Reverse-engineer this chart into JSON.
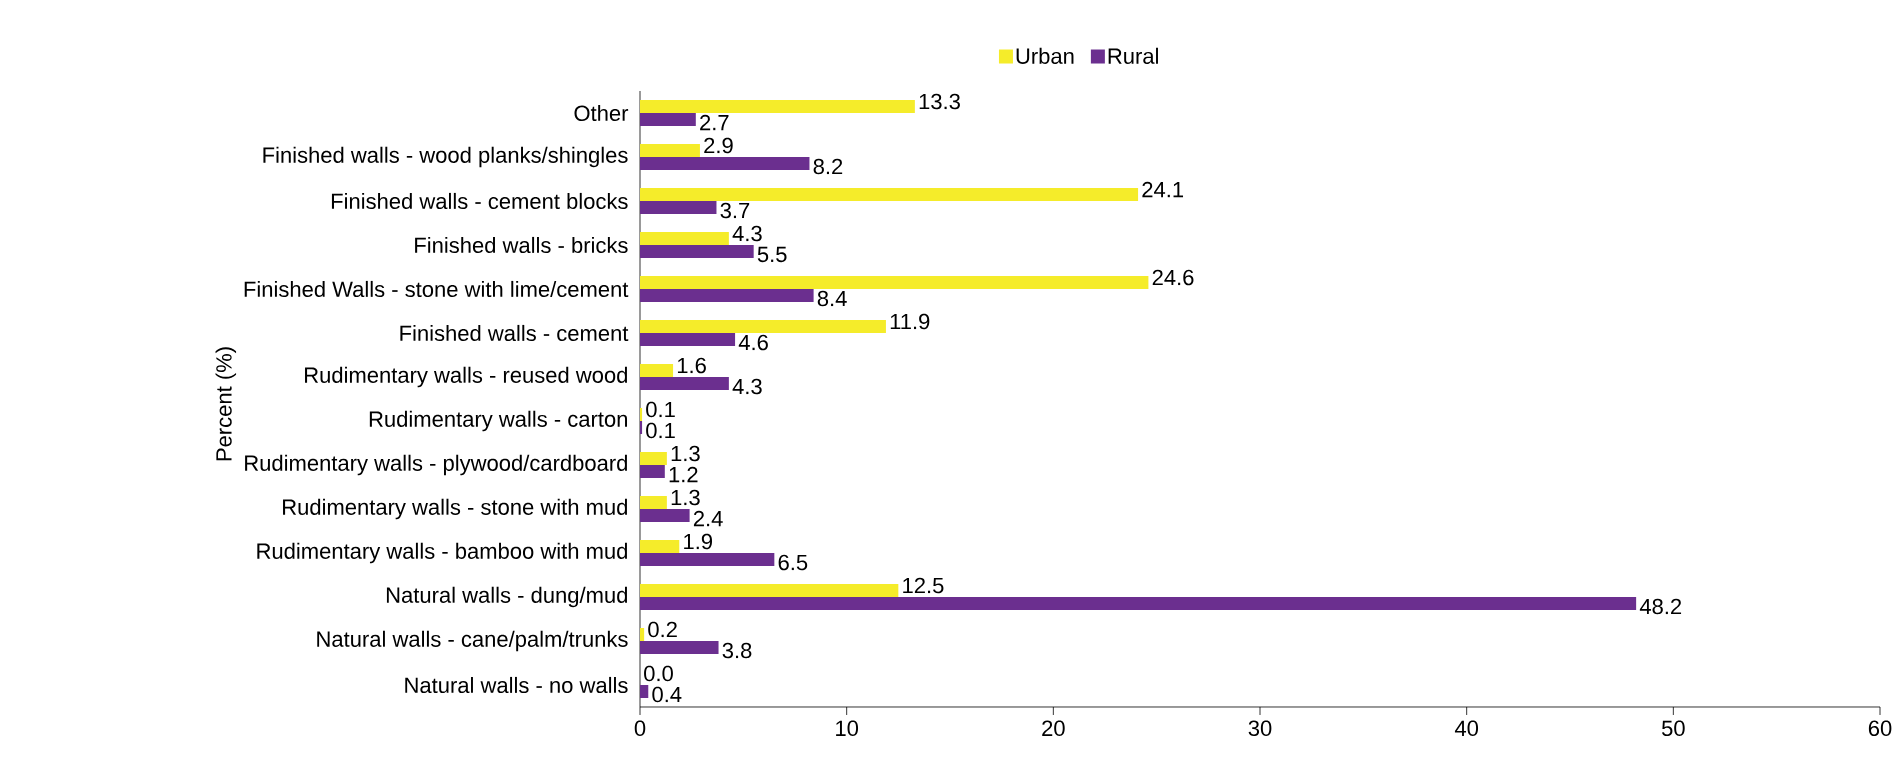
{
  "chart_data": {
    "type": "bar",
    "orientation": "horizontal",
    "ylabel": "Percent (%)",
    "categories": [
      "Other",
      "Finished walls - wood planks/shingles",
      "Finished walls - cement blocks",
      "Finished walls - bricks",
      "Finished Walls - stone with lime/cement",
      "Finished walls - cement",
      "Rudimentary walls - reused wood",
      "Rudimentary walls - carton",
      "Rudimentary walls - plywood/cardboard",
      "Rudimentary walls - stone with mud",
      "Rudimentary walls - bamboo with mud",
      "Natural walls - dung/mud",
      "Natural walls - cane/palm/trunks",
      "Natural walls - no walls"
    ],
    "series": [
      {
        "name": "Urban",
        "color": "#f5ec2a",
        "values": [
          13.3,
          2.9,
          24.1,
          4.3,
          24.6,
          11.9,
          1.6,
          0.1,
          1.3,
          1.3,
          1.9,
          12.5,
          0.2,
          0.0
        ],
        "value_labels": [
          "13.3",
          "2.9",
          "24.1",
          "4.3",
          "24.6",
          "11.9",
          "1.6",
          "0.1",
          "1.3",
          "1.3",
          "1.9",
          "12.5",
          "0.2",
          "0.0"
        ]
      },
      {
        "name": "Rural",
        "color": "#6b2f8f",
        "values": [
          2.7,
          8.2,
          3.7,
          5.5,
          8.4,
          4.6,
          4.3,
          0.1,
          1.2,
          2.4,
          6.5,
          48.2,
          3.8,
          0.4
        ],
        "value_labels": [
          "2.7",
          "8.2",
          "3.7",
          "5.5",
          "8.4",
          "4.6",
          "4.3",
          "0.1",
          "1.2",
          "2.4",
          "6.5",
          "48.2",
          "3.8",
          "0.4"
        ]
      }
    ],
    "xlim": [
      0,
      60
    ],
    "xticks": [
      0,
      10,
      20,
      30,
      40,
      50,
      60
    ],
    "legend": "top"
  }
}
